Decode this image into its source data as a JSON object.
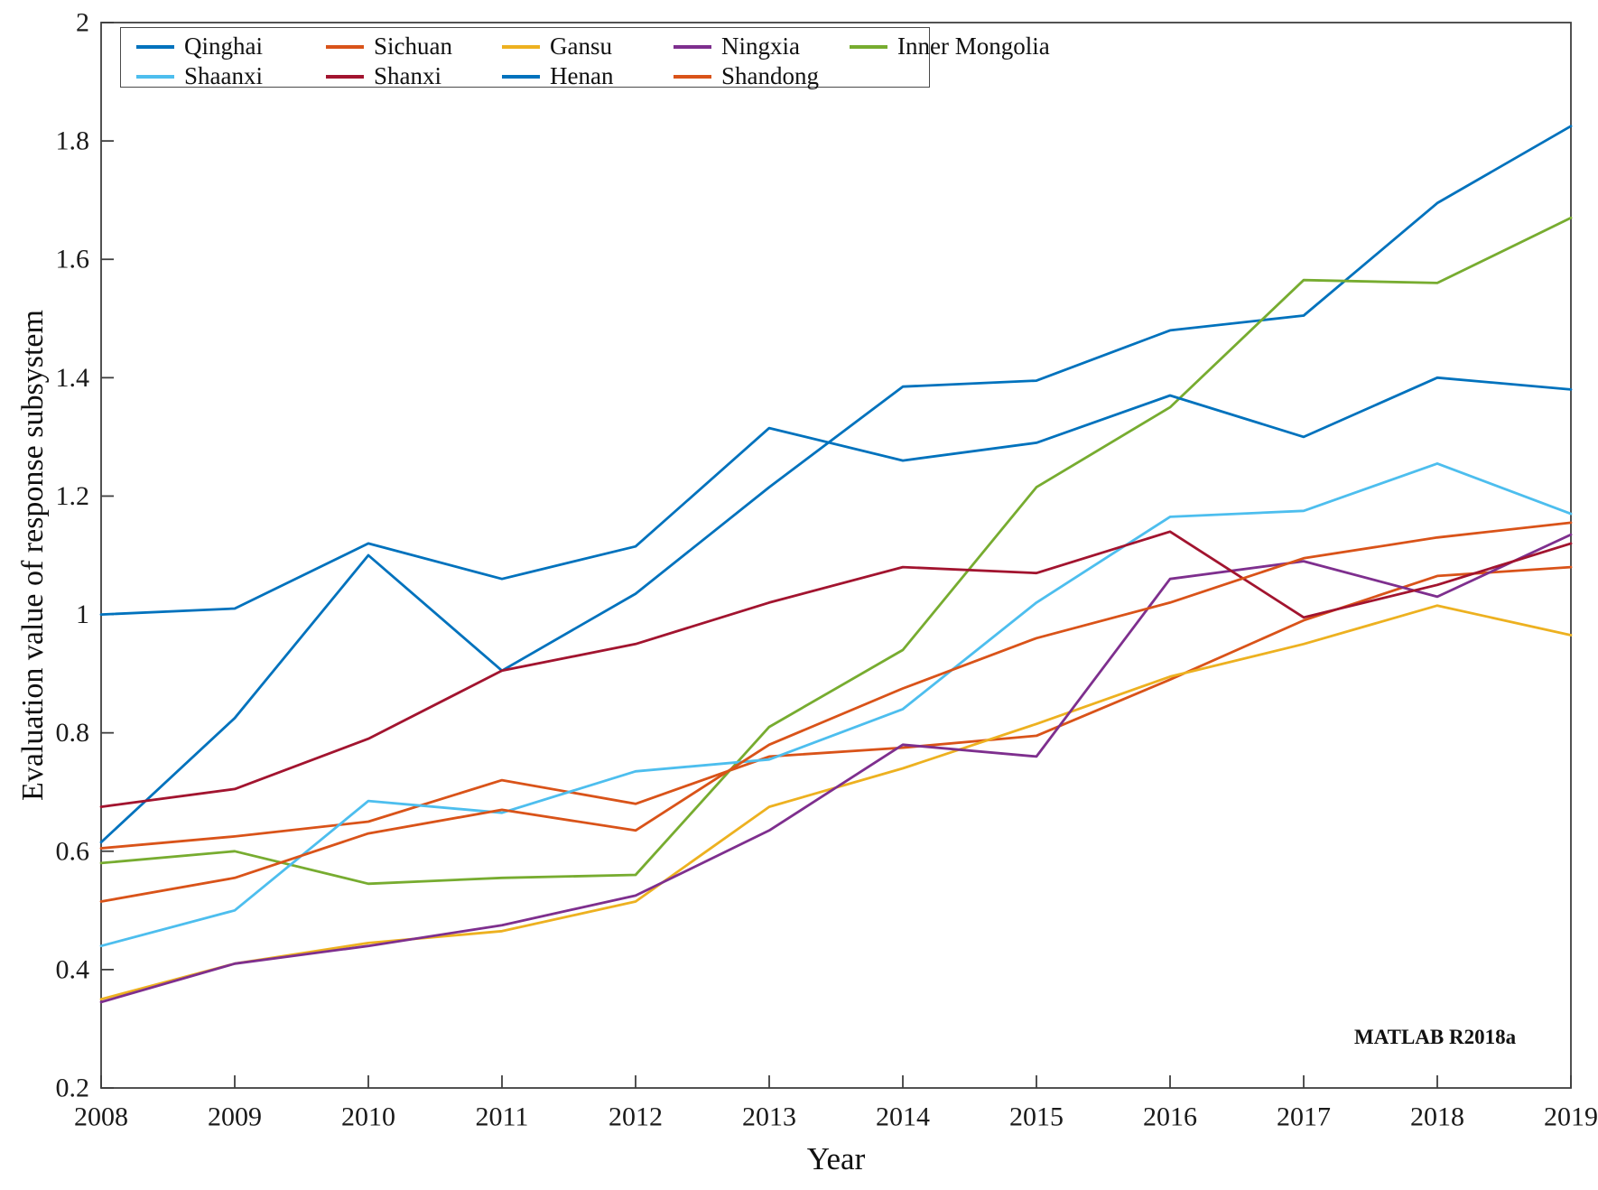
{
  "figure": {
    "watermark": "MATLAB R2018a"
  },
  "chart_data": {
    "type": "line",
    "title": "",
    "xlabel": "Year",
    "ylabel": "Evaluation value of response subsystem",
    "x": [
      2008,
      2009,
      2010,
      2011,
      2012,
      2013,
      2014,
      2015,
      2016,
      2017,
      2018,
      2019
    ],
    "x_ticks": [
      2008,
      2009,
      2010,
      2011,
      2012,
      2013,
      2014,
      2015,
      2016,
      2017,
      2018,
      2019
    ],
    "y_ticks": [
      2,
      1.8,
      1.6,
      1.4,
      1.2,
      1,
      0.8,
      0.6,
      0.4,
      0.2
    ],
    "xlim": [
      2008,
      2019
    ],
    "ylim": [
      0.2,
      2
    ],
    "grid": false,
    "legend": {
      "position": "top-left-inside",
      "rows": [
        [
          "Qinghai",
          "Sichuan",
          "Gansu",
          "Ningxia",
          "Inner Mongolia"
        ],
        [
          "Shaanxi",
          "Shanxi",
          "Henan",
          "Shandong"
        ]
      ]
    },
    "series": [
      {
        "name": "Qinghai",
        "color": "#0072BD",
        "values": [
          0.615,
          0.825,
          1.1,
          0.905,
          1.035,
          1.215,
          1.385,
          1.395,
          1.48,
          1.505,
          1.695,
          1.825
        ]
      },
      {
        "name": "Sichuan",
        "color": "#D95319",
        "values": [
          0.605,
          0.625,
          0.65,
          0.72,
          0.68,
          0.76,
          0.775,
          0.795,
          0.89,
          0.99,
          1.065,
          1.08
        ]
      },
      {
        "name": "Gansu",
        "color": "#EDB120",
        "values": [
          0.35,
          0.41,
          0.445,
          0.465,
          0.515,
          0.675,
          0.74,
          0.815,
          0.895,
          0.95,
          1.015,
          0.965
        ]
      },
      {
        "name": "Ningxia",
        "color": "#7E2F8E",
        "values": [
          0.345,
          0.41,
          0.44,
          0.475,
          0.525,
          0.635,
          0.78,
          0.76,
          1.06,
          1.09,
          1.03,
          1.135
        ]
      },
      {
        "name": "Inner Mongolia",
        "color": "#77AC30",
        "values": [
          0.58,
          0.6,
          0.545,
          0.555,
          0.56,
          0.81,
          0.94,
          1.215,
          1.35,
          1.565,
          1.56,
          1.67
        ]
      },
      {
        "name": "Shaanxi",
        "color": "#4DBEEE",
        "values": [
          0.44,
          0.5,
          0.685,
          0.665,
          0.735,
          0.755,
          0.84,
          1.02,
          1.165,
          1.175,
          1.255,
          1.17
        ]
      },
      {
        "name": "Shanxi",
        "color": "#A2142F",
        "values": [
          0.675,
          0.705,
          0.79,
          0.905,
          0.95,
          1.02,
          1.08,
          1.07,
          1.14,
          0.995,
          1.05,
          1.12
        ]
      },
      {
        "name": "Henan",
        "color": "#0072BD",
        "values": [
          1.0,
          1.01,
          1.12,
          1.06,
          1.115,
          1.315,
          1.26,
          1.29,
          1.37,
          1.3,
          1.4,
          1.38
        ]
      },
      {
        "name": "Shandong",
        "color": "#D95319",
        "values": [
          0.515,
          0.555,
          0.63,
          0.67,
          0.635,
          0.78,
          0.875,
          0.96,
          1.02,
          1.095,
          1.13,
          1.155
        ]
      }
    ]
  }
}
